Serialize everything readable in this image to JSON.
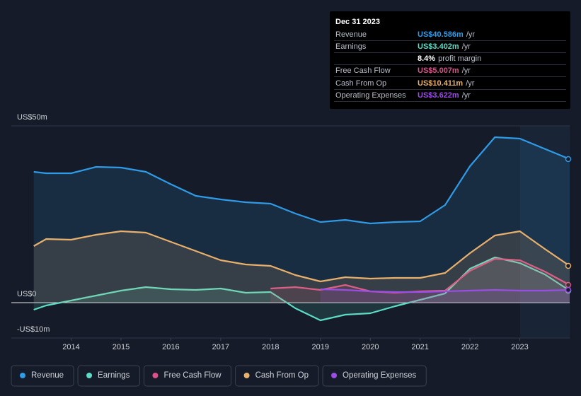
{
  "chart_data": {
    "type": "line",
    "x": [
      2013.25,
      2013.5,
      2014,
      2014.5,
      2015,
      2015.5,
      2016,
      2016.5,
      2017,
      2017.5,
      2018,
      2018.5,
      2019,
      2019.5,
      2020,
      2020.5,
      2021,
      2021.5,
      2022,
      2022.5,
      2023,
      2023.5,
      2024
    ],
    "xlim": [
      2012.8,
      2024.0
    ],
    "xticks": [
      2014,
      2015,
      2016,
      2017,
      2018,
      2019,
      2020,
      2021,
      2022,
      2023
    ],
    "ylim": [
      -10,
      50
    ],
    "yticks": [
      {
        "value": 50,
        "label": "US$50m"
      },
      {
        "value": 0,
        "label": "US$0"
      },
      {
        "value": -10,
        "label": "-US$10m"
      }
    ],
    "series": [
      {
        "name": "Revenue",
        "color": "#2f9be6",
        "values": [
          37,
          36.6,
          36.6,
          38.4,
          38.2,
          37,
          33.5,
          30.2,
          29.2,
          28.4,
          28,
          25.2,
          22.8,
          23.4,
          22.4,
          22.8,
          23,
          27.6,
          38.6,
          46.8,
          46.4,
          43.5,
          40.6
        ]
      },
      {
        "name": "Earnings",
        "color": "#5cdcc4",
        "values": [
          -2,
          -0.8,
          0.6,
          2,
          3.4,
          4.4,
          3.8,
          3.6,
          4,
          2.8,
          3,
          -1.6,
          -5,
          -3.4,
          -3,
          -1,
          0.8,
          2.6,
          9.6,
          12.8,
          11.2,
          8,
          3.4
        ]
      },
      {
        "name": "Free Cash Flow",
        "color": "#d9528a",
        "values": [
          null,
          null,
          null,
          null,
          null,
          null,
          null,
          null,
          null,
          null,
          4,
          4.4,
          3.6,
          5,
          3.2,
          2.8,
          3.2,
          3.4,
          9,
          12.4,
          12,
          8.8,
          5.0
        ]
      },
      {
        "name": "Cash From Op",
        "color": "#e8b06b",
        "values": [
          16,
          18,
          17.8,
          19.2,
          20.2,
          19.8,
          17.2,
          14.6,
          12,
          10.8,
          10.4,
          7.8,
          6,
          7.2,
          6.8,
          7,
          7,
          8.4,
          14,
          19,
          20.2,
          15.2,
          10.4
        ]
      },
      {
        "name": "Operating Expenses",
        "color": "#9b4de6",
        "values": [
          null,
          null,
          null,
          null,
          null,
          null,
          null,
          null,
          null,
          null,
          null,
          null,
          3.8,
          3.6,
          3.2,
          3,
          3,
          3.2,
          3.4,
          3.6,
          3.4,
          3.4,
          3.6
        ]
      }
    ],
    "tooltip": {
      "date": "Dec 31 2023",
      "rows": [
        {
          "label": "Revenue",
          "value": "US$40.586m",
          "unit": "/yr",
          "color": "#2f9be6"
        },
        {
          "label": "Earnings",
          "value": "US$3.402m",
          "unit": "/yr",
          "color": "#5cdcc4"
        },
        {
          "value": "8.4%",
          "unit": "profit margin",
          "color": "#ffffff"
        },
        {
          "label": "Free Cash Flow",
          "value": "US$5.007m",
          "unit": "/yr",
          "color": "#d9528a"
        },
        {
          "label": "Cash From Op",
          "value": "US$10.411m",
          "unit": "/yr",
          "color": "#e8b06b"
        },
        {
          "label": "Operating Expenses",
          "value": "US$3.622m",
          "unit": "/yr",
          "color": "#9b4de6"
        }
      ]
    }
  }
}
